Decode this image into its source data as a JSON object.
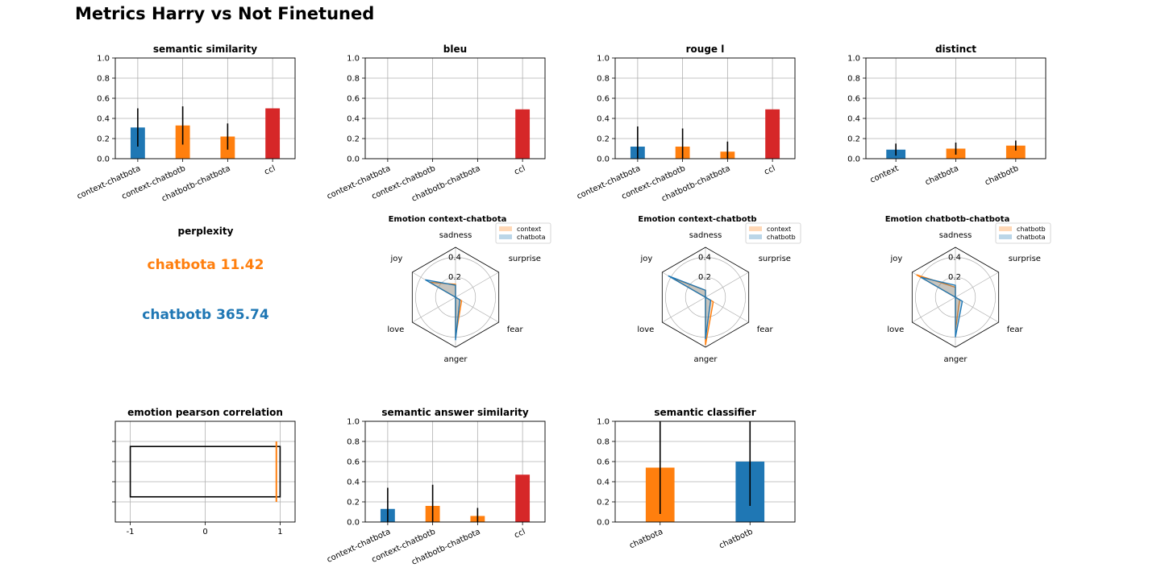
{
  "title": "Metrics Harry vs Not Finetuned",
  "colors": {
    "blue": "#1f77b4",
    "orange": "#ff7f0e",
    "red": "#d62728",
    "grid": "#b0b0b0"
  },
  "chart_data": [
    {
      "id": "semantic_similarity",
      "type": "bar",
      "title": "semantic similarity",
      "categories": [
        "context-chatbota",
        "context-chatbotb",
        "chatbotb-chatbota",
        "ccl"
      ],
      "values": [
        0.31,
        0.33,
        0.22,
        0.5
      ],
      "err": [
        0.19,
        0.19,
        0.13,
        0
      ],
      "colors": [
        "blue",
        "orange",
        "orange",
        "red"
      ],
      "ylim": [
        0,
        1
      ],
      "grid": true
    },
    {
      "id": "bleu",
      "type": "bar",
      "title": "bleu",
      "categories": [
        "context-chatbota",
        "context-chatbotb",
        "chatbotb-chatbota",
        "ccl"
      ],
      "values": [
        0,
        0,
        0,
        0.49
      ],
      "err": [
        0,
        0,
        0,
        0
      ],
      "colors": [
        "blue",
        "orange",
        "orange",
        "red"
      ],
      "ylim": [
        0,
        1
      ],
      "grid": true
    },
    {
      "id": "rouge_l",
      "type": "bar",
      "title": "rouge l",
      "categories": [
        "context-chatbota",
        "context-chatbotb",
        "chatbotb-chatbota",
        "ccl"
      ],
      "values": [
        0.12,
        0.12,
        0.07,
        0.49
      ],
      "err": [
        0.2,
        0.18,
        0.1,
        0
      ],
      "colors": [
        "blue",
        "orange",
        "orange",
        "red"
      ],
      "ylim": [
        0,
        1
      ],
      "grid": true
    },
    {
      "id": "distinct",
      "type": "bar",
      "title": "distinct",
      "categories": [
        "context",
        "chatbota",
        "chatbotb"
      ],
      "values": [
        0.09,
        0.1,
        0.13
      ],
      "err": [
        0.06,
        0.06,
        0.05
      ],
      "colors": [
        "blue",
        "orange",
        "orange"
      ],
      "ylim": [
        0,
        1
      ],
      "grid": true
    },
    {
      "id": "perplexity",
      "type": "table",
      "title": "perplexity",
      "entries": [
        {
          "label": "chatbota 11.42",
          "color": "orange"
        },
        {
          "label": "chatbotb 365.74",
          "color": "blue"
        }
      ]
    },
    {
      "id": "emotion_cta",
      "type": "radar",
      "title": "Emotion context-chatbota",
      "axes": [
        "sadness",
        "surprise",
        "fear",
        "anger",
        "love",
        "joy"
      ],
      "rticks": [
        "0.2",
        "0.4"
      ],
      "rmax": 0.5,
      "series": [
        {
          "name": "context",
          "color": "orange",
          "values": [
            0.13,
            0,
            0.07,
            0.4,
            0,
            0.3
          ]
        },
        {
          "name": "chatbota",
          "color": "blue",
          "values": [
            0.12,
            0,
            0.05,
            0.43,
            0,
            0.35
          ]
        }
      ]
    },
    {
      "id": "emotion_ctb",
      "type": "radar",
      "title": "Emotion context-chatbotb",
      "axes": [
        "sadness",
        "surprise",
        "fear",
        "anger",
        "love",
        "joy"
      ],
      "rticks": [
        "0.2",
        "0.4"
      ],
      "rmax": 0.5,
      "series": [
        {
          "name": "context",
          "color": "orange",
          "values": [
            0.07,
            0,
            0.09,
            0.48,
            0,
            0.4
          ]
        },
        {
          "name": "chatbotb",
          "color": "blue",
          "values": [
            0.07,
            0,
            0.06,
            0.42,
            0,
            0.43
          ]
        }
      ]
    },
    {
      "id": "emotion_btb",
      "type": "radar",
      "title": "Emotion chatbotb-chatbota",
      "axes": [
        "sadness",
        "surprise",
        "fear",
        "anger",
        "love",
        "joy"
      ],
      "rticks": [
        "0.2",
        "0.4"
      ],
      "rmax": 0.5,
      "series": [
        {
          "name": "chatbotb",
          "color": "orange",
          "values": [
            0.1,
            0,
            0.05,
            0.33,
            0,
            0.45
          ]
        },
        {
          "name": "chatbota",
          "color": "blue",
          "values": [
            0.12,
            0,
            0.08,
            0.4,
            0,
            0.4
          ]
        }
      ]
    },
    {
      "id": "emotion_pearson",
      "type": "bar",
      "title": "emotion pearson correlation",
      "xticks": [
        "-1",
        "0",
        "1"
      ],
      "xlim": [
        -1.2,
        1.2
      ],
      "box": {
        "x0": -1,
        "x1": 1,
        "y0": 0.25,
        "y1": 0.75
      },
      "line": {
        "x": 0.95,
        "y0": 0.2,
        "y1": 0.8,
        "color": "orange"
      }
    },
    {
      "id": "semantic_answer_similarity",
      "type": "bar",
      "title": "semantic answer similarity",
      "categories": [
        "context-chatbota",
        "context-chatbotb",
        "chatbotb-chatbota",
        "ccl"
      ],
      "values": [
        0.13,
        0.16,
        0.06,
        0.47
      ],
      "err": [
        0.21,
        0.21,
        0.08,
        0
      ],
      "colors": [
        "blue",
        "orange",
        "orange",
        "red"
      ],
      "ylim": [
        0,
        1
      ],
      "grid": true
    },
    {
      "id": "semantic_classifier",
      "type": "bar",
      "title": "semantic classifier",
      "categories": [
        "chatbota",
        "chatbotb"
      ],
      "values": [
        0.54,
        0.6
      ],
      "err": [
        0.46,
        0.44
      ],
      "colors": [
        "orange",
        "blue"
      ],
      "ylim": [
        0,
        1
      ],
      "grid": true
    }
  ]
}
